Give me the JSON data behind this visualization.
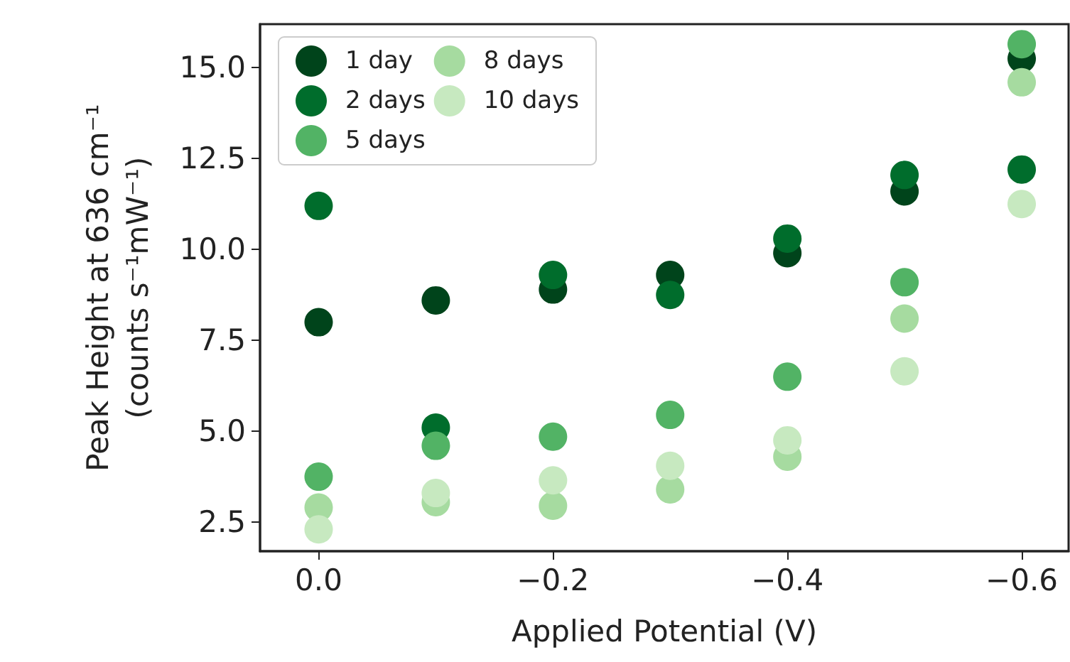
{
  "chart_data": {
    "type": "scatter",
    "xlabel": "Applied Potential (V)",
    "ylabel": "Peak Height at 636 cm⁻¹\n(counts s⁻¹mW⁻¹)",
    "x": [
      0,
      -0.1,
      -0.2,
      -0.3,
      -0.4,
      -0.5,
      -0.6
    ],
    "series": [
      {
        "name": "1 day",
        "color": "#00441b",
        "values": [
          8.0,
          8.6,
          8.9,
          9.3,
          9.9,
          11.6,
          15.25
        ]
      },
      {
        "name": "2 days",
        "color": "#006d2c",
        "values": [
          11.2,
          5.1,
          9.3,
          8.75,
          10.3,
          12.05,
          12.2
        ]
      },
      {
        "name": "5 days",
        "color": "#52b365",
        "values": [
          3.75,
          4.6,
          4.85,
          5.45,
          6.5,
          9.1,
          15.65
        ]
      },
      {
        "name": "8 days",
        "color": "#a6dba0",
        "values": [
          2.9,
          3.05,
          2.95,
          3.4,
          4.3,
          8.1,
          14.6
        ]
      },
      {
        "name": "10 days",
        "color": "#c7e9c0",
        "values": [
          2.3,
          3.3,
          3.65,
          4.05,
          4.75,
          6.65,
          11.25
        ]
      }
    ],
    "xlim": [
      0.05,
      -0.64
    ],
    "xticks": [
      {
        "value": 0,
        "label": "0.0"
      },
      {
        "value": -0.2,
        "label": "−0.2"
      },
      {
        "value": -0.4,
        "label": "−0.4"
      },
      {
        "value": -0.6,
        "label": "−0.6"
      }
    ],
    "ylim": [
      1.7,
      16.2
    ],
    "yticks": [
      {
        "value": 2.5,
        "label": "2.5"
      },
      {
        "value": 5,
        "label": "5.0"
      },
      {
        "value": 7.5,
        "label": "7.5"
      },
      {
        "value": 10,
        "label": "10.0"
      },
      {
        "value": 12.5,
        "label": "12.5"
      },
      {
        "value": 15,
        "label": "15.0"
      }
    ],
    "legend": "top left",
    "marker": "circle",
    "grid": false
  }
}
